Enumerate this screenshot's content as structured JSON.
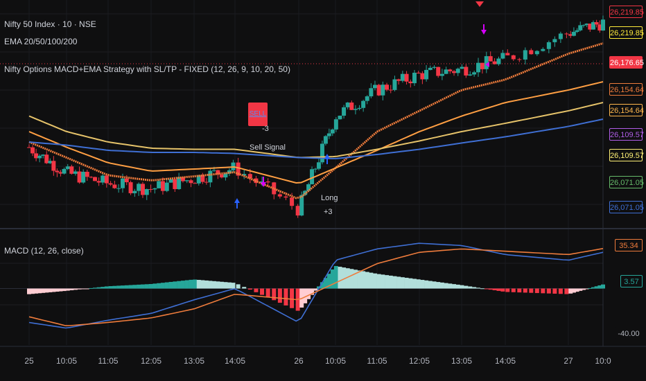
{
  "legend": {
    "symbol": "Nifty 50 Index · 10 · NSE",
    "ema": "EMA 20/50/100/200",
    "strategy": "Nifty Options MACD+EMA Strategy with SL/TP - FIXED (12, 26, 9, 10, 20, 50)",
    "macd": "MACD (12, 26, close)"
  },
  "price_tags": [
    {
      "text": "26,219.85",
      "bg": "#0f0f10",
      "fg": "#f23645",
      "border": "#f23645"
    },
    {
      "text": "26,219.85",
      "bg": "#0f0f10",
      "fg": "#ffeb3b",
      "border": "#ffeb3b"
    },
    {
      "text": "26,176.65",
      "bg": "#f23645",
      "fg": "#ffffff",
      "border": "#f23645"
    },
    {
      "text": "26,154.64",
      "bg": "#0f0f10",
      "fg": "#ef7c3c",
      "border": "#ef7c3c"
    },
    {
      "text": "26,154.64",
      "bg": "#0f0f10",
      "fg": "#ffb74d",
      "border": "#ffb74d"
    },
    {
      "text": "26,109.57",
      "bg": "#0f0f10",
      "fg": "#b15ee8",
      "border": "#b15ee8"
    },
    {
      "text": "26,109.57",
      "bg": "#0f0f10",
      "fg": "#fff176",
      "border": "#fff176"
    },
    {
      "text": "26,071.05",
      "bg": "#0f0f10",
      "fg": "#66bb6a",
      "border": "#66bb6a"
    },
    {
      "text": "26,071.05",
      "bg": "#0f0f10",
      "fg": "#3f6fd4",
      "border": "#3f6fd4"
    }
  ],
  "macd_tags": [
    {
      "text": "35.34",
      "bg": "#0f0f10",
      "fg": "#ef7c3c",
      "border": "#ef7c3c"
    },
    {
      "text": "3.57",
      "bg": "#0f0f10",
      "fg": "#26a69a",
      "border": "#26a69a"
    },
    {
      "text": "-40.00",
      "bg": "#0f0f10",
      "fg": "#b2b5be",
      "border": "#0f0f10"
    }
  ],
  "time_labels": [
    "25",
    "10:05",
    "11:05",
    "12:05",
    "13:05",
    "14:05",
    "26",
    "10:05",
    "11:05",
    "12:05",
    "13:05",
    "14:05",
    "27",
    "10:0"
  ],
  "signals": {
    "sell_box": "SELL",
    "sell_count": "-3",
    "sell_text": "Sell Signal",
    "long_text": "Long",
    "long_count": "+3"
  },
  "colors": {
    "up": "#26a69a",
    "down": "#f23645",
    "ema20": "#ef7c3c",
    "ema50": "#ff9f43",
    "ema100": "#e6c36a",
    "ema200": "#3f6fd4",
    "macd": "#3f6fd4",
    "signal": "#ef7c3c"
  },
  "chart_data": [
    {
      "type": "line",
      "title": "Nifty 50 Index · 10 · NSE",
      "x": [
        "25",
        "10:05",
        "11:05",
        "12:05",
        "13:05",
        "14:05",
        "26",
        "10:05",
        "11:05",
        "12:05",
        "13:05",
        "14:05",
        "27",
        "10:0"
      ],
      "ylim": [
        26030,
        26240
      ],
      "series": [
        {
          "name": "price",
          "values": [
            26105,
            26080,
            26070,
            26065,
            26075,
            26085,
            26045,
            26135,
            26160,
            26175,
            26180,
            26190,
            26215,
            26225
          ]
        },
        {
          "name": "EMA",
          "values": [
            26110,
            26095,
            26078,
            26073,
            26077,
            26081,
            26055,
            26085,
            26120,
            26140,
            26160,
            26170,
            26195,
            26205
          ]
        },
        {
          "name": "EMA",
          "values": [
            26120,
            26105,
            26090,
            26082,
            26084,
            26086,
            26070,
            26085,
            26102,
            26120,
            26135,
            26148,
            26160,
            26168
          ]
        },
        {
          "name": "EMA",
          "values": [
            26135,
            26120,
            26110,
            26104,
            26103,
            26103,
            26095,
            26096,
            26103,
            26111,
            26120,
            26128,
            26140,
            26148
          ]
        },
        {
          "name": "EMA",
          "values": [
            26110,
            26107,
            26102,
            26100,
            26100,
            26099,
            26095,
            26094,
            26098,
            26103,
            26109,
            26115,
            26125,
            26132
          ]
        }
      ],
      "price_labels": [
        "26,219.85",
        "26,219.85",
        "26,176.65",
        "26,154.64",
        "26,154.64",
        "26,109.57",
        "26,109.57",
        "26,071.05",
        "26,071.05"
      ]
    },
    {
      "type": "bar",
      "title": "MACD (12, 26, close)",
      "x": [
        "25",
        "10:05",
        "11:05",
        "12:05",
        "13:05",
        "14:05",
        "26",
        "10:05",
        "11:05",
        "12:05",
        "13:05",
        "14:05",
        "27",
        "10:0"
      ],
      "ylim": [
        -45,
        45
      ],
      "series": [
        {
          "name": "MACD",
          "values": [
            -30,
            -35,
            -28,
            -22,
            -10,
            0,
            -30,
            25,
            35,
            40,
            38,
            30,
            25,
            32
          ]
        },
        {
          "name": "Signal",
          "values": [
            -25,
            -33,
            -30,
            -26,
            -18,
            -5,
            -10,
            5,
            22,
            32,
            35,
            33,
            30,
            35.34
          ]
        },
        {
          "name": "Histogram",
          "values": [
            -5,
            -2,
            2,
            4,
            8,
            5,
            -20,
            20,
            13,
            8,
            3,
            -3,
            -5,
            3.57
          ]
        }
      ],
      "labels": [
        "35.34",
        "3.57",
        "-40.00"
      ]
    }
  ]
}
